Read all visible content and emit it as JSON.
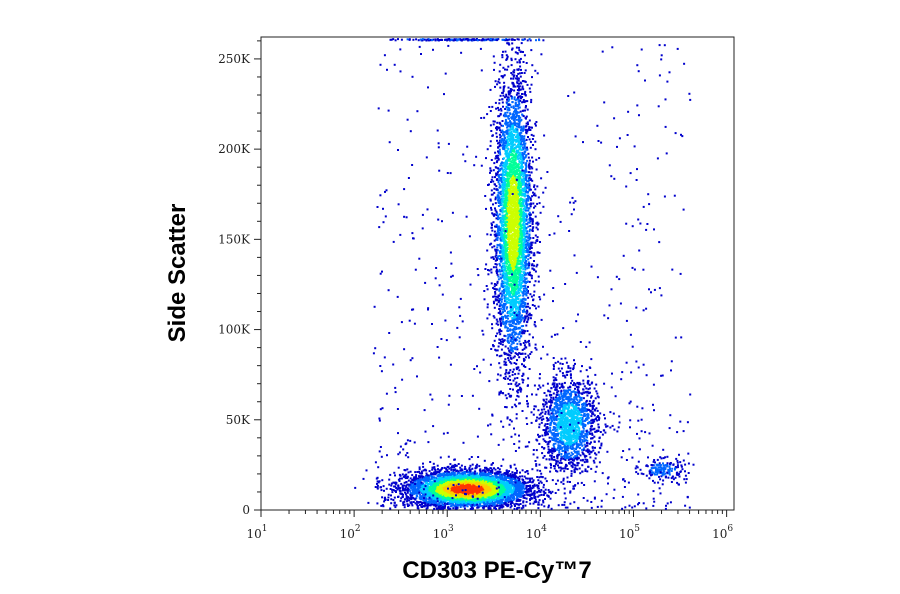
{
  "chart_data": {
    "type": "scatter",
    "subtype": "flow-cytometry-density-dot-plot",
    "xlabel": "CD303 PE-Cy™7",
    "ylabel": "Side Scatter",
    "x_scale": "log",
    "xlim": [
      10,
      1200000
    ],
    "ylim": [
      0,
      262144
    ],
    "x_ticks": [
      {
        "value": 10,
        "base": "10",
        "exp": "1"
      },
      {
        "value": 100,
        "base": "10",
        "exp": "2"
      },
      {
        "value": 1000,
        "base": "10",
        "exp": "3"
      },
      {
        "value": 10000,
        "base": "10",
        "exp": "4"
      },
      {
        "value": 100000,
        "base": "10",
        "exp": "5"
      },
      {
        "value": 1000000,
        "base": "10",
        "exp": "6"
      }
    ],
    "y_ticks": [
      {
        "value": 0,
        "label": "0"
      },
      {
        "value": 50000,
        "label": "50K"
      },
      {
        "value": 100000,
        "label": "100K"
      },
      {
        "value": 150000,
        "label": "150K"
      },
      {
        "value": 200000,
        "label": "200K"
      },
      {
        "value": 250000,
        "label": "250K"
      }
    ],
    "color_scale": [
      "#0000cc",
      "#0066ff",
      "#00ccff",
      "#00ff99",
      "#ccff00",
      "#ffcc00",
      "#ff3300"
    ],
    "series": [
      {
        "x_center": 1600,
        "y_center": 12000,
        "x_spread_decades": 0.32,
        "y_spread": 5000,
        "relative_count": 1.0,
        "peak_color": "#ff3300"
      },
      {
        "x_center": 5000,
        "y_center": 160000,
        "x_spread_decades": 0.1,
        "y_spread": 40000,
        "relative_count": 0.8,
        "peak_color": "#ccff00"
      },
      {
        "x_center": 20000,
        "y_center": 48000,
        "x_spread_decades": 0.15,
        "y_spread": 13000,
        "relative_count": 0.3,
        "peak_color": "#00ccff"
      },
      {
        "x_center": 200000,
        "y_center": 23000,
        "x_spread_decades": 0.12,
        "y_spread": 3000,
        "relative_count": 0.03,
        "peak_color": "#0066ff"
      }
    ]
  }
}
